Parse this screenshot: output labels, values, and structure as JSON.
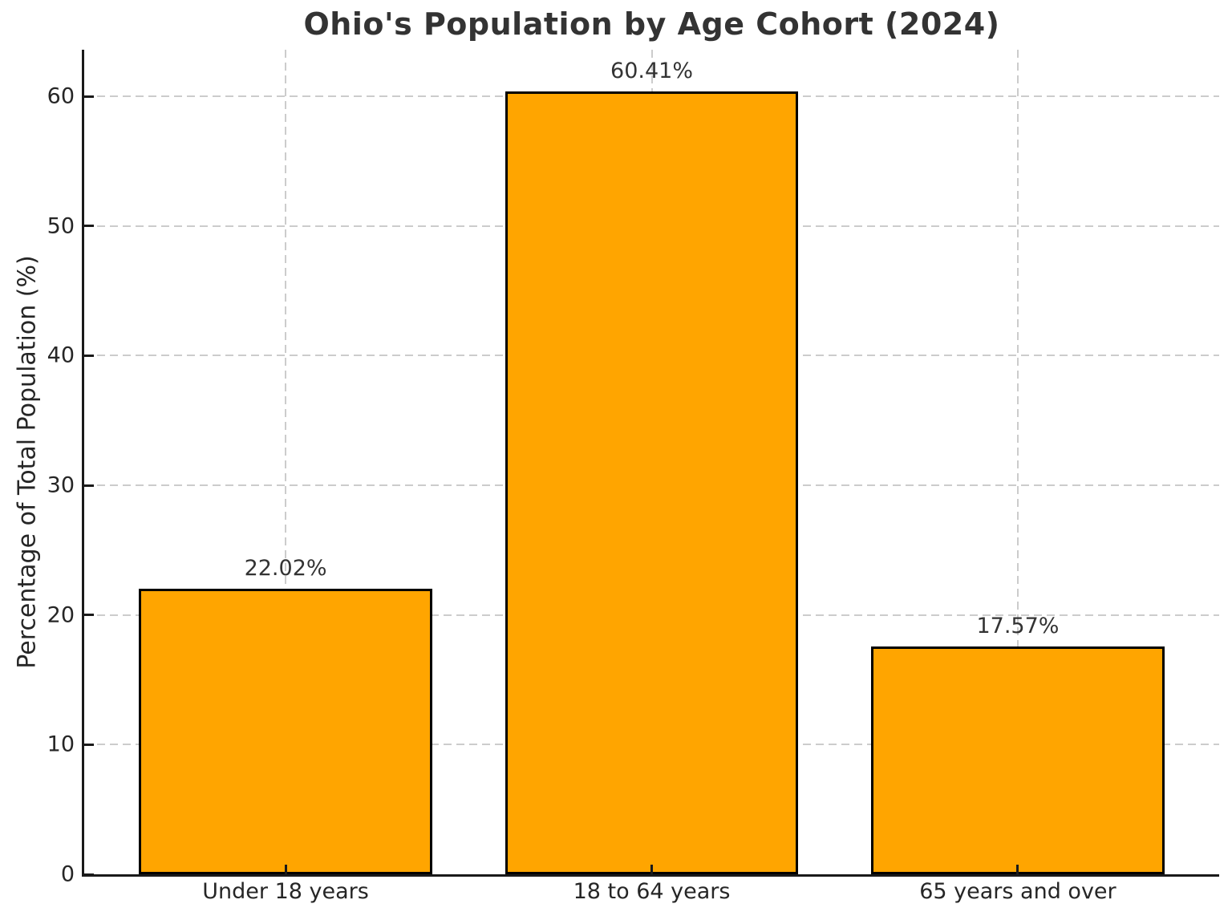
{
  "chart_data": {
    "type": "bar",
    "title": "Ohio's Population by Age Cohort (2024)",
    "categories": [
      "Under 18 years",
      "18 to 64 years",
      "65 years and over"
    ],
    "values": [
      22.02,
      60.41,
      17.57
    ],
    "bar_labels": [
      "22.02%",
      "60.41%",
      "17.57%"
    ],
    "xlabel": "",
    "ylabel": "Percentage of Total Population (%)",
    "ylim": [
      0,
      63.6
    ],
    "yticks": [
      0,
      10,
      20,
      30,
      40,
      50,
      60
    ],
    "bar_color": "#FFA500",
    "bar_edge_color": "#000000",
    "grid": true,
    "grid_color": "#cccccc",
    "grid_style": "dashed",
    "legend_position": "none",
    "background_color": "#ffffff",
    "text_color": "#333333"
  }
}
